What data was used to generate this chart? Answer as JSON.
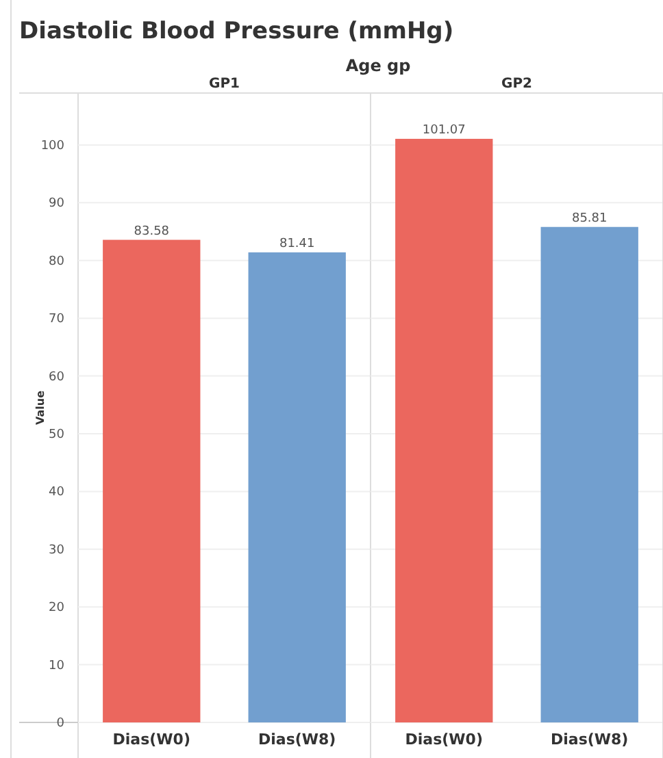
{
  "chart_data": [
    {
      "type": "bar",
      "title": "Diastolic Blood Pressure (mmHg)",
      "subtitle": "GP1",
      "annotations": [
        "Age gp"
      ],
      "ylabel": "Value",
      "categories": [
        "Dias(W0)",
        "Dias(W8)"
      ],
      "values": [
        83.58,
        81.41
      ],
      "colors": [
        "#eb675e",
        "#729fcf"
      ],
      "ylim": [
        0,
        109
      ],
      "yticks": [
        0,
        10,
        20,
        30,
        40,
        50,
        60,
        70,
        80,
        90,
        100
      ],
      "grid": "y",
      "data_labels": true
    },
    {
      "type": "bar",
      "subtitle": "GP2",
      "categories": [
        "Dias(W0)",
        "Dias(W8)"
      ],
      "values": [
        101.07,
        85.81
      ],
      "colors": [
        "#eb675e",
        "#729fcf"
      ],
      "ylim": [
        0,
        109
      ],
      "yticks": [
        0,
        10,
        20,
        30,
        40,
        50,
        60,
        70,
        80,
        90,
        100
      ],
      "grid": "y",
      "data_labels": true,
      "tick_labels": "x"
    }
  ]
}
